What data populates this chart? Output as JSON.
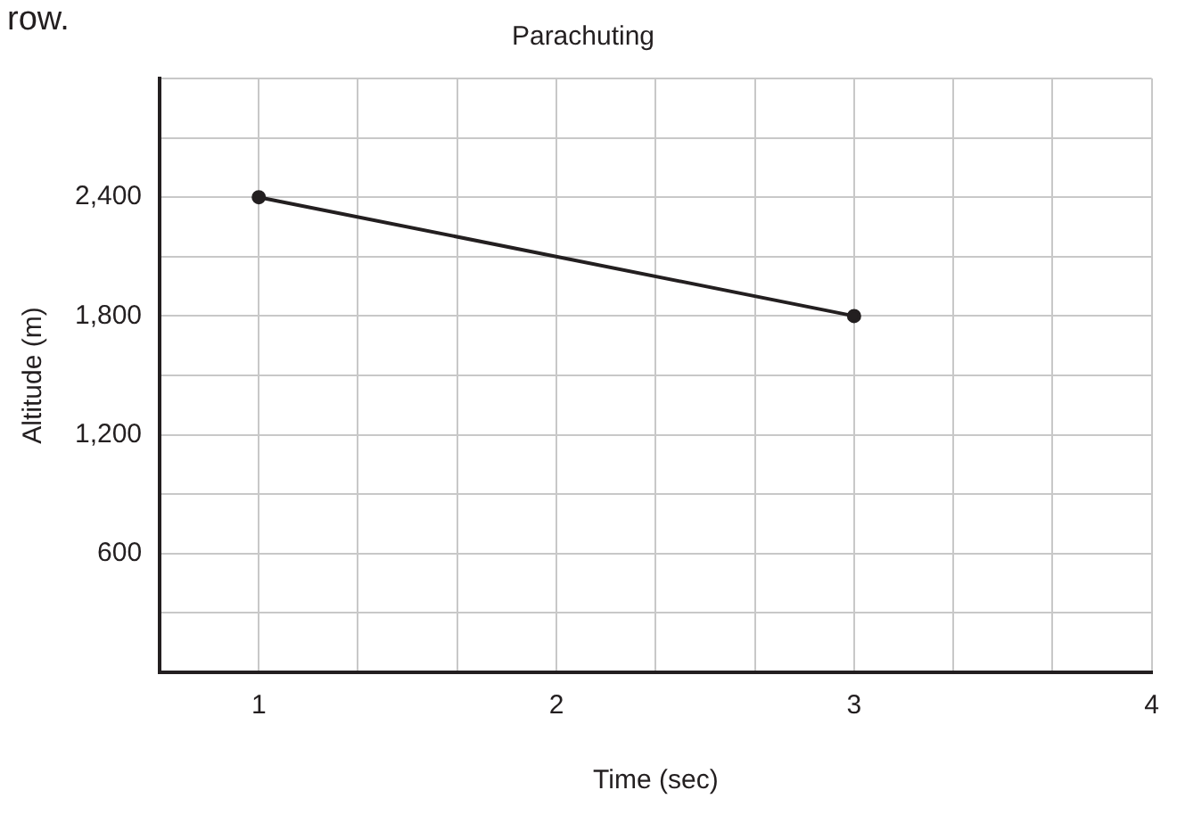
{
  "chart_data": {
    "type": "line",
    "title": "Parachuting",
    "xlabel": "Time (sec)",
    "ylabel": "Altitude (m)",
    "annotations": [
      "row."
    ],
    "x": [
      1,
      3
    ],
    "series": [
      {
        "color": "#231f20",
        "values": [
          2400,
          1800
        ]
      }
    ],
    "xlim": [
      0.667,
      4
    ],
    "xticks": [
      {
        "value": 0.667,
        "label": null
      },
      1,
      {
        "value": 1.333,
        "label": null
      },
      {
        "value": 1.667,
        "label": null
      },
      2,
      {
        "value": 2.333,
        "label": null
      },
      {
        "value": 2.667,
        "label": null
      },
      3,
      {
        "value": 3.333,
        "label": null
      },
      {
        "value": 3.667,
        "label": null
      },
      4
    ],
    "ylim": [
      0,
      3000
    ],
    "yticks": [
      {
        "value": 0,
        "label": null
      },
      {
        "value": 300,
        "label": null
      },
      {
        "value": 600,
        "label": "600"
      },
      {
        "value": 900,
        "label": null
      },
      {
        "value": 1200,
        "label": "1,200"
      },
      {
        "value": 1500,
        "label": null
      },
      {
        "value": 1800,
        "label": "1,800"
      },
      {
        "value": 2100,
        "label": null
      },
      {
        "value": 2400,
        "label": "2,400"
      },
      {
        "value": 2700,
        "label": null
      },
      {
        "value": 3000,
        "label": null
      }
    ],
    "grid": true,
    "legend": false,
    "marker": "circle",
    "line_style": "solid"
  }
}
